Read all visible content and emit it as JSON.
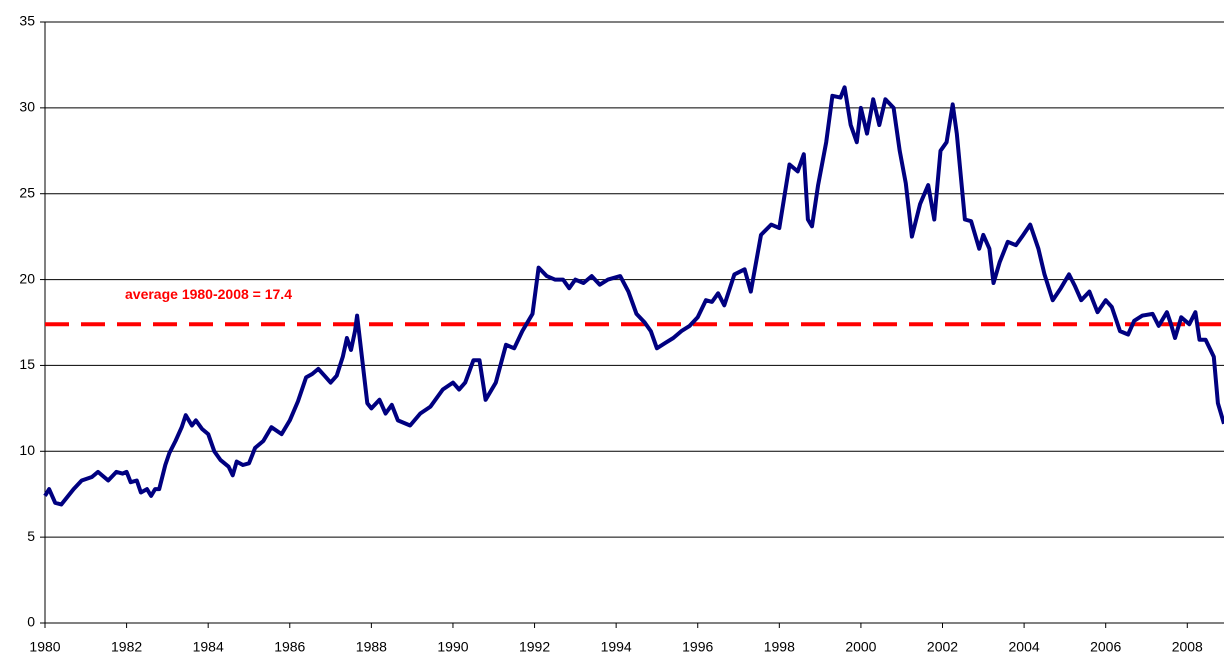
{
  "chart_data": {
    "type": "line",
    "color": "#000080",
    "grid": true,
    "xlim": [
      1980,
      2008.9
    ],
    "ylim": [
      0,
      35
    ],
    "xticks": [
      1980,
      1982,
      1984,
      1986,
      1988,
      1990,
      1992,
      1994,
      1996,
      1998,
      2000,
      2002,
      2004,
      2006,
      2008
    ],
    "yticks": [
      0,
      5,
      10,
      15,
      20,
      25,
      30,
      35
    ],
    "average_line": {
      "value": 17.4,
      "label": "average 1980-2008 = 17.4",
      "color": "#ff0000"
    },
    "x": [
      1980,
      1980.1,
      1980.25,
      1980.4,
      1980.7,
      1980.9,
      1981.15,
      1981.3,
      1981.55,
      1981.75,
      1981.9,
      1982.0,
      1982.1,
      1982.25,
      1982.35,
      1982.5,
      1982.6,
      1982.7,
      1982.8,
      1982.95,
      1983.05,
      1983.2,
      1983.35,
      1983.45,
      1983.6,
      1983.7,
      1983.85,
      1984.0,
      1984.15,
      1984.3,
      1984.5,
      1984.6,
      1984.7,
      1984.85,
      1985.0,
      1985.15,
      1985.35,
      1985.55,
      1985.8,
      1986.0,
      1986.2,
      1986.4,
      1986.55,
      1986.7,
      1986.85,
      1987.0,
      1987.15,
      1987.3,
      1987.4,
      1987.5,
      1987.6,
      1987.65,
      1987.9,
      1988.0,
      1988.2,
      1988.35,
      1988.5,
      1988.65,
      1988.95,
      1989.2,
      1989.45,
      1989.75,
      1990.0,
      1990.15,
      1990.3,
      1990.5,
      1990.65,
      1990.8,
      1991.05,
      1991.3,
      1991.5,
      1991.7,
      1991.95,
      1992.1,
      1992.3,
      1992.5,
      1992.7,
      1992.85,
      1993.0,
      1993.2,
      1993.4,
      1993.6,
      1993.8,
      1994.1,
      1994.3,
      1994.5,
      1994.7,
      1994.85,
      1995.0,
      1995.2,
      1995.4,
      1995.6,
      1995.8,
      1996.0,
      1996.2,
      1996.35,
      1996.5,
      1996.65,
      1996.9,
      1997.15,
      1997.3,
      1997.55,
      1997.8,
      1998.0,
      1998.25,
      1998.45,
      1998.6,
      1998.7,
      1998.8,
      1998.95,
      1999.15,
      1999.3,
      1999.5,
      1999.6,
      1999.75,
      1999.9,
      2000.0,
      2000.15,
      2000.3,
      2000.45,
      2000.6,
      2000.8,
      2000.95,
      2001.1,
      2001.25,
      2001.45,
      2001.65,
      2001.8,
      2001.95,
      2002.1,
      2002.25,
      2002.35,
      2002.55,
      2002.7,
      2002.9,
      2003.0,
      2003.15,
      2003.25,
      2003.4,
      2003.6,
      2003.8,
      2003.95,
      2004.15,
      2004.35,
      2004.5,
      2004.7,
      2004.9,
      2005.1,
      2005.25,
      2005.4,
      2005.6,
      2005.8,
      2006.0,
      2006.15,
      2006.35,
      2006.55,
      2006.7,
      2006.9,
      2007.15,
      2007.3,
      2007.5,
      2007.6,
      2007.7,
      2007.85,
      2008.05,
      2008.2,
      2008.3,
      2008.45,
      2008.65,
      2008.75,
      2008.9
    ],
    "values": [
      7.4,
      7.8,
      7.0,
      6.9,
      7.8,
      8.3,
      8.5,
      8.8,
      8.3,
      8.8,
      8.7,
      8.8,
      8.2,
      8.3,
      7.6,
      7.8,
      7.4,
      7.8,
      7.8,
      9.2,
      9.9,
      10.6,
      11.4,
      12.1,
      11.5,
      11.8,
      11.3,
      11.0,
      10.0,
      9.5,
      9.1,
      8.6,
      9.4,
      9.2,
      9.3,
      10.2,
      10.6,
      11.4,
      11.0,
      11.8,
      12.9,
      14.3,
      14.5,
      14.8,
      14.4,
      14.0,
      14.4,
      15.5,
      16.6,
      15.9,
      17.0,
      17.9,
      12.8,
      12.5,
      13.0,
      12.2,
      12.7,
      11.8,
      11.5,
      12.2,
      12.6,
      13.6,
      14.0,
      13.6,
      14.0,
      15.3,
      15.3,
      13.0,
      14.0,
      16.2,
      16.0,
      17.0,
      18.0,
      20.7,
      20.2,
      20.0,
      20.0,
      19.5,
      20.0,
      19.8,
      20.2,
      19.7,
      20.0,
      20.2,
      19.3,
      18.0,
      17.5,
      17.0,
      16.0,
      16.3,
      16.6,
      17.0,
      17.3,
      17.8,
      18.8,
      18.7,
      19.2,
      18.5,
      20.3,
      20.6,
      19.3,
      22.6,
      23.2,
      23.0,
      26.7,
      26.3,
      27.3,
      23.5,
      23.1,
      25.5,
      28.0,
      30.7,
      30.6,
      31.2,
      29.0,
      28.0,
      30.0,
      28.5,
      30.5,
      29.0,
      30.5,
      30.0,
      27.5,
      25.6,
      22.5,
      24.4,
      25.5,
      23.5,
      27.5,
      28.0,
      30.2,
      28.5,
      23.5,
      23.4,
      21.8,
      22.6,
      21.8,
      19.8,
      21.0,
      22.2,
      22.0,
      22.5,
      23.2,
      21.8,
      20.3,
      18.8,
      19.5,
      20.3,
      19.6,
      18.8,
      19.3,
      18.1,
      18.8,
      18.4,
      17.0,
      16.8,
      17.6,
      17.9,
      18.0,
      17.3,
      18.1,
      17.4,
      16.6,
      17.8,
      17.4,
      18.1,
      16.5,
      16.5,
      15.5,
      12.8,
      11.6
    ]
  }
}
